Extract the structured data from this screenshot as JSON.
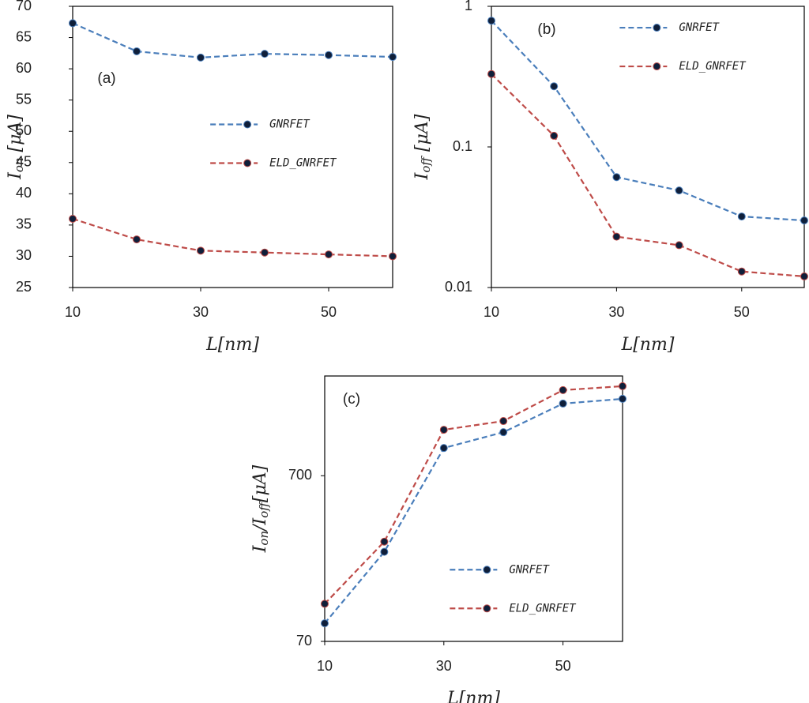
{
  "chart_data": [
    {
      "type": "line",
      "panel_label": "(a)",
      "x_label": "L[nm]",
      "y_label": [
        {
          "text": "I"
        },
        {
          "text": "on",
          "sub": true
        },
        {
          "text": " [μA]"
        }
      ],
      "x": [
        10,
        20,
        30,
        40,
        50,
        60
      ],
      "xlim": [
        10,
        60
      ],
      "xticks": [
        10,
        30,
        50
      ],
      "ylim": [
        25,
        70
      ],
      "yticks": [
        25,
        30,
        35,
        40,
        45,
        50,
        55,
        60,
        65,
        70
      ],
      "log_y": false,
      "marker_color": "#0f1f3a",
      "legend_position": "center-right",
      "series": [
        {
          "name": "GNRFET",
          "color": "#4a7ebb",
          "values": [
            67.3,
            62.8,
            61.8,
            62.4,
            62.2,
            61.9
          ]
        },
        {
          "name": "ELD_GNRFET",
          "color": "#be4b48",
          "values": [
            36.0,
            32.7,
            30.9,
            30.6,
            30.3,
            30.0
          ]
        }
      ]
    },
    {
      "type": "line",
      "panel_label": "(b)",
      "x_label": "L[nm]",
      "y_label": [
        {
          "text": "I"
        },
        {
          "text": "off",
          "sub": true
        },
        {
          "text": " [μA]"
        }
      ],
      "x": [
        10,
        20,
        30,
        40,
        50,
        60
      ],
      "xlim": [
        10,
        60
      ],
      "xticks": [
        10,
        30,
        50
      ],
      "ylim": [
        0.01,
        1
      ],
      "yticks": [
        0.01,
        0.1,
        1
      ],
      "log_y": true,
      "marker_color": "#0f1f3a",
      "legend_position": "upper-right",
      "series": [
        {
          "name": "GNRFET",
          "color": "#4a7ebb",
          "values": [
            0.79,
            0.27,
            0.061,
            0.049,
            0.032,
            0.03
          ]
        },
        {
          "name": "ELD_GNRFET",
          "color": "#be4b48",
          "values": [
            0.33,
            0.12,
            0.023,
            0.02,
            0.013,
            0.012
          ]
        }
      ]
    },
    {
      "type": "line",
      "panel_label": "(c)",
      "x_label": "L[nm]",
      "y_label": [
        {
          "text": "I"
        },
        {
          "text": "on",
          "sub": true
        },
        {
          "text": "/I"
        },
        {
          "text": "off",
          "sub": true
        },
        {
          "text": "[μA]"
        }
      ],
      "x": [
        10,
        20,
        30,
        40,
        50,
        60
      ],
      "xlim": [
        10,
        60
      ],
      "xticks": [
        10,
        30,
        50
      ],
      "ylim": [
        70,
        2800
      ],
      "yticks": [
        70,
        700
      ],
      "log_y": true,
      "marker_color": "#0f1f3a",
      "legend_position": "lower-right",
      "series": [
        {
          "name": "GNRFET",
          "color": "#4a7ebb",
          "values": [
            90,
            243,
            1029,
            1282,
            1908,
            2038
          ]
        },
        {
          "name": "ELD_GNRFET",
          "color": "#be4b48",
          "values": [
            118,
            280,
            1326,
            1497,
            2301,
            2430
          ]
        }
      ]
    }
  ]
}
